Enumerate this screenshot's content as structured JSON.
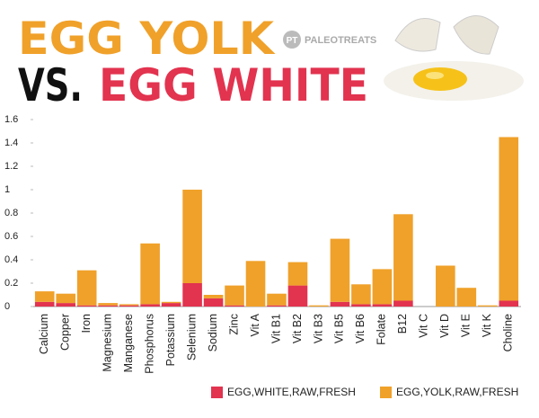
{
  "header": {
    "line1": "EGG YOLK",
    "vs": "VS.",
    "line2": "EGG WHITE",
    "logo_mark": "PT",
    "logo": "PALEOTREATS"
  },
  "chart_data": {
    "type": "stacked-bar",
    "categories": [
      "Calcium",
      "Copper",
      "Iron",
      "Magnesium",
      "Manganese",
      "Phosphorus",
      "Potassium",
      "Selenium",
      "Sodium",
      "Zinc",
      "Vit A",
      "Vit B1",
      "Vit B2",
      "Vit B3",
      "Vit B5",
      "Vit B6",
      "Folate",
      "B12",
      "Vit C",
      "Vit D",
      "Vit E",
      "Vit K",
      "Choline"
    ],
    "series": [
      {
        "name": "EGG,WHITE,RAW,FRESH",
        "color": "#e2334f",
        "values": [
          0.04,
          0.03,
          0.01,
          0.01,
          0.01,
          0.02,
          0.03,
          0.2,
          0.07,
          0.01,
          0,
          0.01,
          0.18,
          0,
          0.04,
          0.02,
          0.02,
          0.05,
          0,
          0,
          0,
          0,
          0.05
        ]
      },
      {
        "name": "EGG,YOLK,RAW,FRESH",
        "color": "#f0a12a",
        "values": [
          0.09,
          0.08,
          0.3,
          0.02,
          0.01,
          0.52,
          0.01,
          0.8,
          0.03,
          0.17,
          0.39,
          0.1,
          0.2,
          0.01,
          0.54,
          0.17,
          0.3,
          0.74,
          0,
          0.35,
          0.16,
          0.01,
          1.4
        ]
      }
    ],
    "ylim": [
      0,
      1.6
    ],
    "yticks": [
      0,
      0.2,
      0.4,
      0.6,
      0.8,
      1,
      1.2,
      1.4,
      1.6
    ],
    "grid": false
  }
}
